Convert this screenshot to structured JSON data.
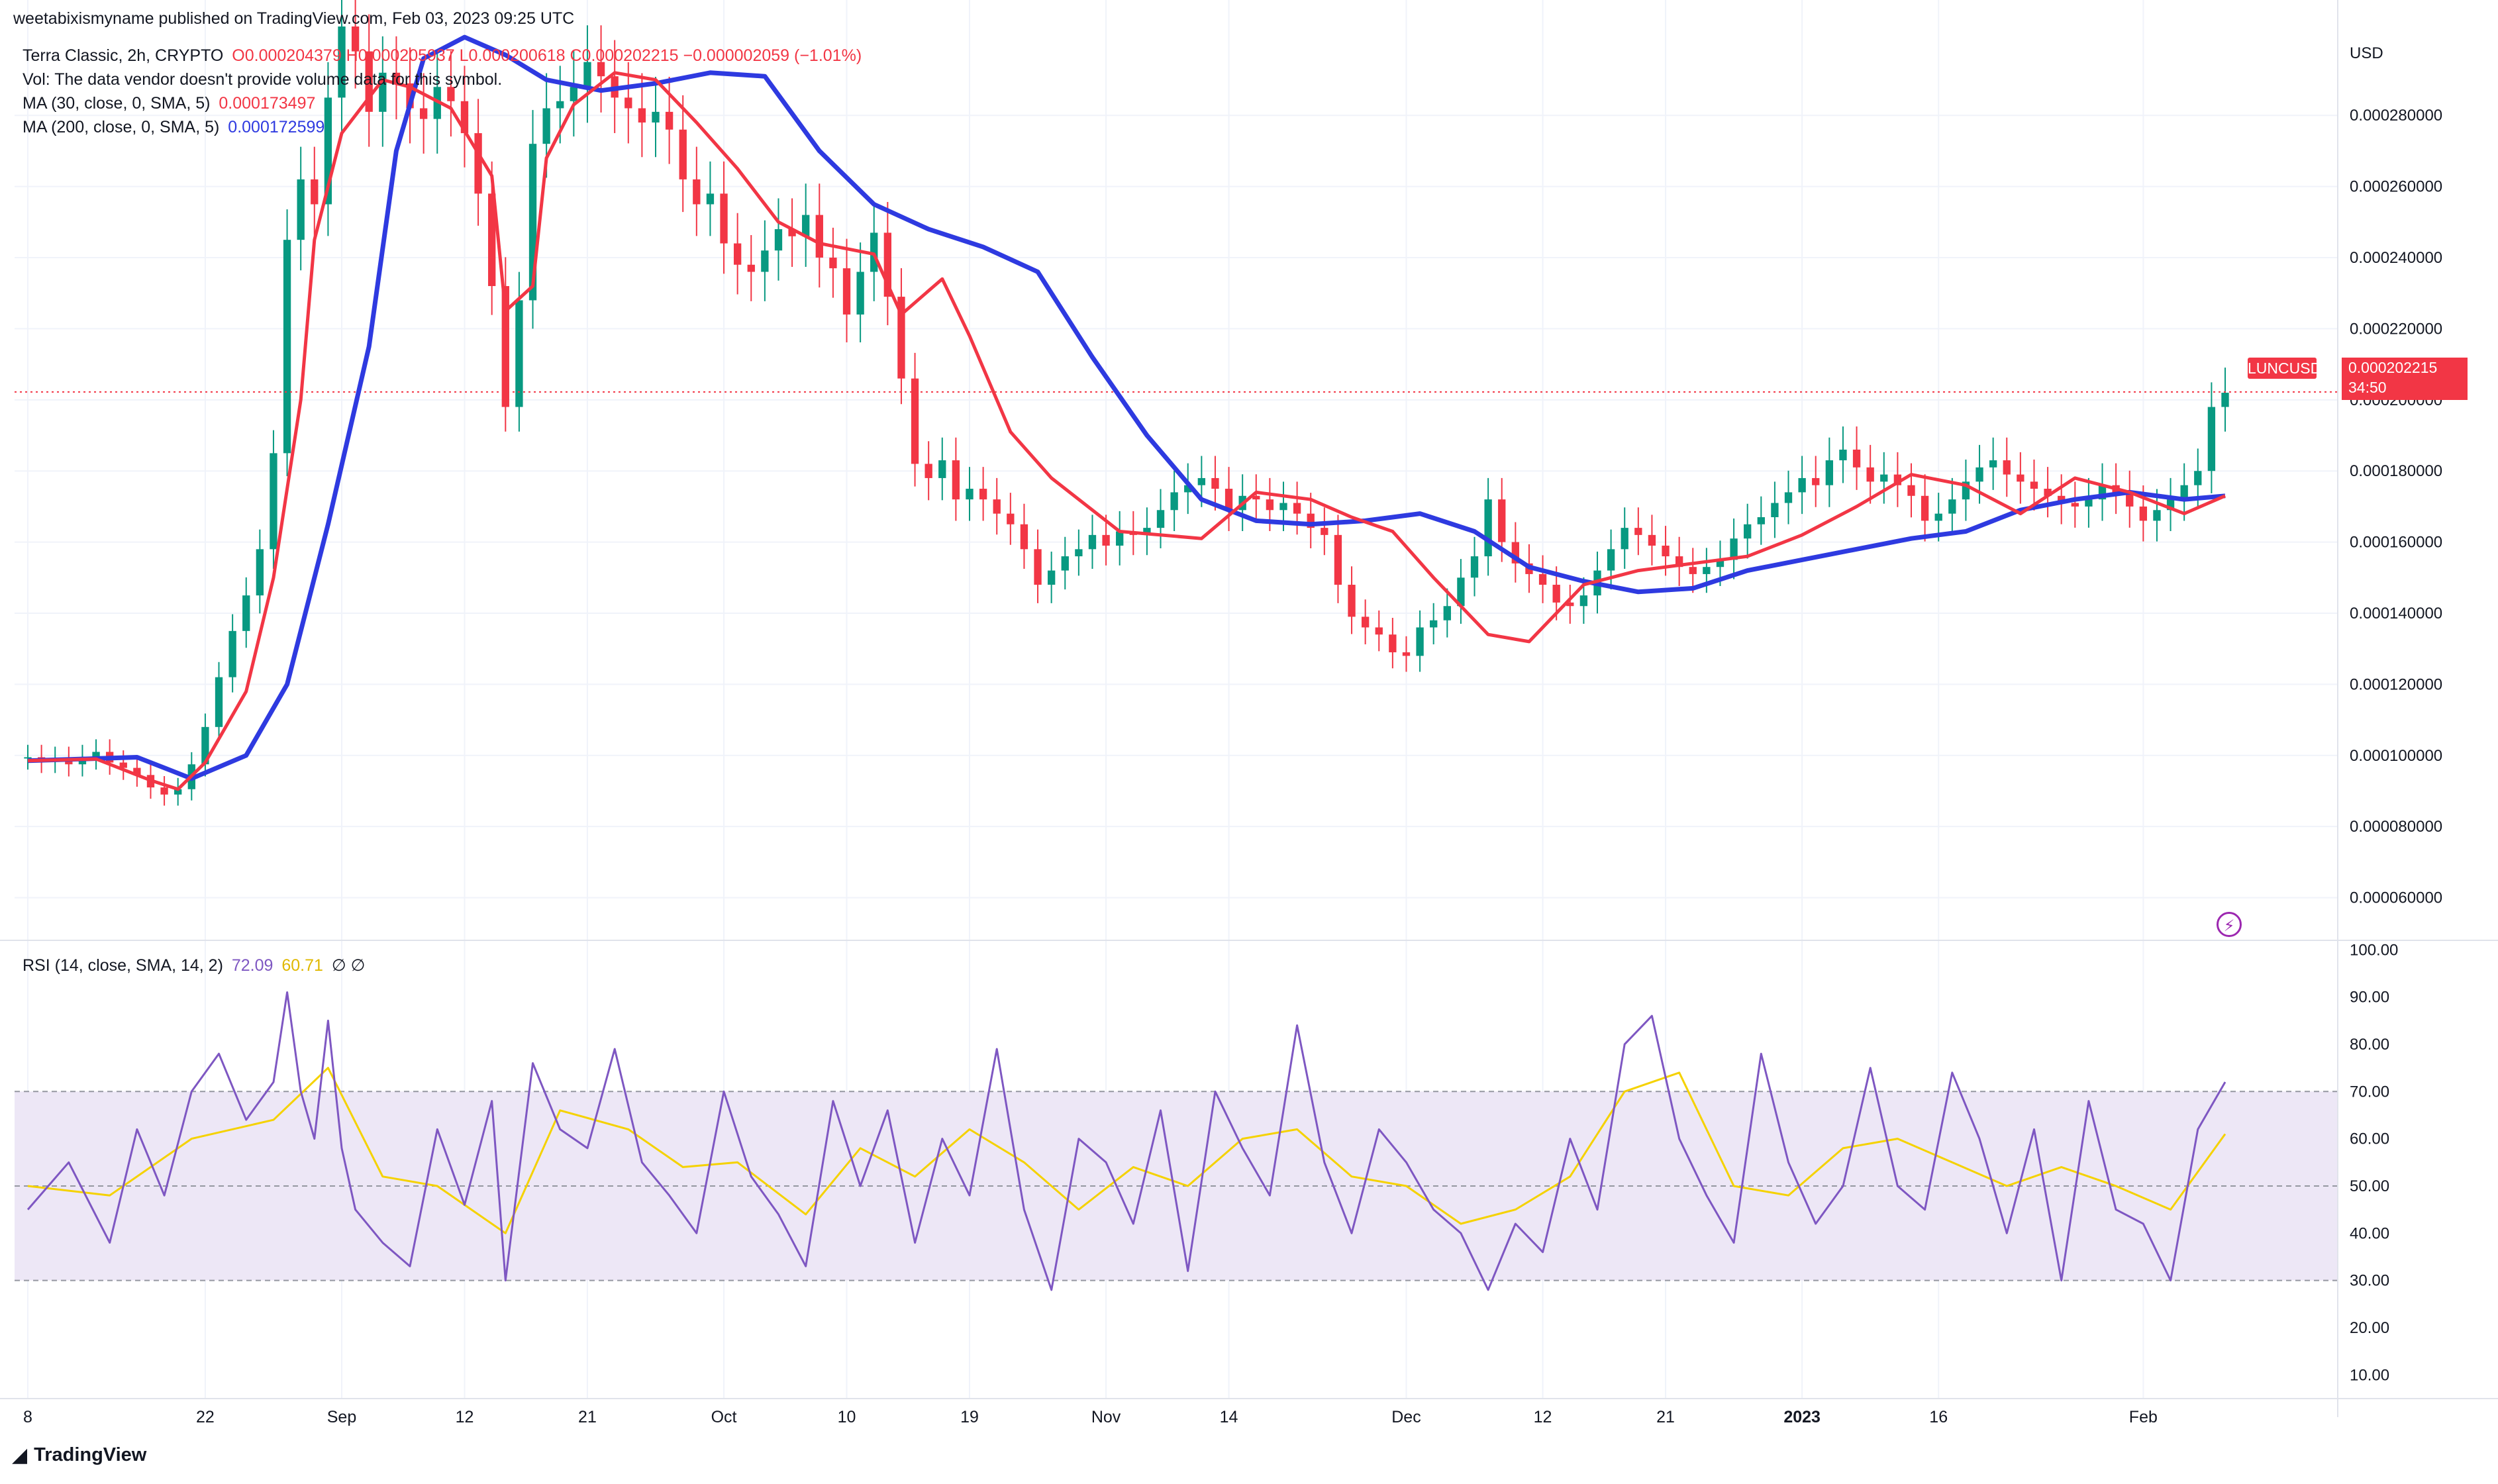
{
  "header": {
    "published": "weetabixismyname published on TradingView.com, Feb 03, 2023 09:25 UTC"
  },
  "legend": {
    "symbol": "Terra Classic, 2h, CRYPTO",
    "ohlc": "O0.000204379 H0.000205937 L0.000200618 C0.000202215 −0.000002059 (−1.01%)",
    "vol": "Vol: The data vendor doesn't provide volume data for this symbol.",
    "ma30_label": "MA (30, close, 0, SMA, 5)",
    "ma30_value": "0.000173497",
    "ma200_label": "MA (200, close, 0, SMA, 5)",
    "ma200_value": "0.000172599",
    "rsi_label": "RSI (14, close, SMA, 14, 2)",
    "rsi_value": "72.09",
    "rsi_ma_value": "60.71",
    "rsi_extra": "∅  ∅"
  },
  "price_tag": {
    "symbol": "LUNCUSD",
    "price": "0.000202215",
    "countdown": "34:50"
  },
  "colors": {
    "ma30": "#f23645",
    "ma200": "#2e3ae0",
    "candle_up": "#089981",
    "candle_down": "#f23645",
    "rsi": "#7e57c2",
    "rsi_ma": "#f5d200",
    "rsi_band": "#ede7f6"
  },
  "footer": {
    "brand": "TradingView"
  },
  "chart_data": [
    {
      "type": "candlestick",
      "title": "Terra Classic, 2h, CRYPTO",
      "currency": "USD",
      "y_ticks": [
        "0.000060000",
        "0.000080000",
        "0.000100000",
        "0.000120000",
        "0.000140000",
        "0.000160000",
        "0.000180000",
        "0.000200000",
        "0.000220000",
        "0.000240000",
        "0.000260000",
        "0.000280000"
      ],
      "ylim": [
        4.8e-05,
        0.000305
      ],
      "x_ticks": [
        "8",
        "22",
        "Sep",
        "12",
        "21",
        "Oct",
        "10",
        "19",
        "Nov",
        "14",
        "Dec",
        "12",
        "21",
        "2023",
        "16",
        "Feb"
      ],
      "series": [
        {
          "name": "Close (approx.)",
          "x": [
            0,
            1,
            2,
            3,
            4,
            5,
            6,
            7,
            8,
            9,
            10,
            11,
            12,
            13,
            14,
            15,
            16,
            17,
            18,
            19,
            20,
            21,
            22,
            23,
            24,
            25,
            26,
            27,
            28,
            29,
            30,
            31,
            32,
            33,
            34,
            35,
            36,
            37,
            38,
            39,
            40,
            41,
            42,
            43,
            44,
            45,
            46,
            47,
            48,
            49,
            50,
            51,
            52,
            53,
            54,
            55,
            56,
            57,
            58,
            59,
            60,
            61,
            62,
            63,
            64,
            65,
            66,
            67,
            68,
            69,
            70,
            71,
            72,
            73,
            74,
            75,
            76,
            77,
            78,
            79,
            80,
            81,
            82,
            83,
            84,
            85,
            86,
            87,
            88,
            89,
            90,
            91,
            92,
            93,
            94,
            95,
            96,
            97,
            98,
            99,
            100,
            101,
            102,
            103,
            104,
            105,
            106,
            107,
            108,
            109,
            110,
            111,
            112,
            113,
            114,
            115,
            116,
            117,
            118,
            119,
            120,
            121,
            122,
            123,
            124,
            125,
            126,
            127,
            128,
            129,
            130,
            131,
            132,
            133,
            134,
            135,
            136,
            137,
            138,
            139,
            140,
            141,
            142,
            143,
            144,
            145,
            146,
            147,
            148,
            149,
            150,
            151,
            152,
            153,
            154,
            155,
            156,
            157,
            158,
            159,
            160,
            161
          ],
          "values": [
            9.95e-05,
            9.85e-05,
            9.9e-05,
            9.75e-05,
            9.95e-05,
            0.000101,
            9.8e-05,
            9.65e-05,
            9.45e-05,
            9.1e-05,
            8.9e-05,
            9.05e-05,
            9.75e-05,
            0.000108,
            0.000122,
            0.000135,
            0.000145,
            0.000158,
            0.000185,
            0.000245,
            0.000262,
            0.000255,
            0.000285,
            0.000305,
            0.000298,
            0.000281,
            0.000292,
            0.000289,
            0.000282,
            0.000279,
            0.000288,
            0.000284,
            0.000275,
            0.000258,
            0.000232,
            0.000198,
            0.000228,
            0.000272,
            0.000282,
            0.000284,
            0.000288,
            0.000295,
            0.000291,
            0.000285,
            0.000282,
            0.000278,
            0.000281,
            0.000276,
            0.000262,
            0.000255,
            0.000258,
            0.000244,
            0.000238,
            0.000236,
            0.000242,
            0.000248,
            0.000246,
            0.000252,
            0.00024,
            0.000237,
            0.000224,
            0.000236,
            0.000247,
            0.000229,
            0.000206,
            0.000182,
            0.000178,
            0.000183,
            0.000172,
            0.000175,
            0.000172,
            0.000168,
            0.000165,
            0.000158,
            0.000148,
            0.000152,
            0.000156,
            0.000158,
            0.000162,
            0.000159,
            0.000163,
            0.000162,
            0.000164,
            0.000169,
            0.000174,
            0.000176,
            0.000178,
            0.000175,
            0.000169,
            0.000173,
            0.000172,
            0.000169,
            0.000171,
            0.000168,
            0.000164,
            0.000162,
            0.000148,
            0.000139,
            0.000136,
            0.000134,
            0.000129,
            0.000128,
            0.000136,
            0.000138,
            0.000142,
            0.00015,
            0.000156,
            0.000172,
            0.00016,
            0.000154,
            0.000151,
            0.000148,
            0.000143,
            0.000142,
            0.000145,
            0.000152,
            0.000158,
            0.000164,
            0.000162,
            0.000159,
            0.000156,
            0.000153,
            0.000151,
            0.000153,
            0.000155,
            0.000161,
            0.000165,
            0.000167,
            0.000171,
            0.000174,
            0.000178,
            0.000176,
            0.000183,
            0.000186,
            0.000181,
            0.000177,
            0.000179,
            0.000176,
            0.000173,
            0.000166,
            0.000168,
            0.000172,
            0.000177,
            0.000181,
            0.000183,
            0.000179,
            0.000177,
            0.000175,
            0.000173,
            0.000171,
            0.00017,
            0.000172,
            0.000176,
            0.000174,
            0.00017,
            0.000166,
            0.000169,
            0.000172,
            0.000176,
            0.00018,
            0.000198,
            0.000202
          ]
        },
        {
          "name": "MA (30, close, 0, SMA, 5)",
          "x": [
            0,
            5,
            9,
            11,
            13,
            16,
            18,
            20,
            21,
            23,
            26,
            28,
            31,
            34,
            35,
            37,
            38,
            40,
            43,
            46,
            49,
            52,
            55,
            58,
            62,
            64,
            67,
            69,
            72,
            75,
            80,
            86,
            90,
            94,
            97,
            100,
            103,
            107,
            110,
            114,
            118,
            122,
            126,
            130,
            134,
            138,
            142,
            146,
            150,
            154,
            158,
            161
          ],
          "values": [
            9.85e-05,
            9.9e-05,
            9.3e-05,
            9.05e-05,
            9.8e-05,
            0.000118,
            0.00015,
            0.0002,
            0.000245,
            0.000275,
            0.00029,
            0.000288,
            0.000282,
            0.000263,
            0.000225,
            0.000232,
            0.000268,
            0.000283,
            0.000292,
            0.00029,
            0.000278,
            0.000265,
            0.00025,
            0.000244,
            0.000241,
            0.000224,
            0.000234,
            0.000218,
            0.000191,
            0.000178,
            0.000163,
            0.000161,
            0.000174,
            0.000172,
            0.000167,
            0.000163,
            0.00015,
            0.000134,
            0.000132,
            0.000148,
            0.000152,
            0.000154,
            0.000156,
            0.000162,
            0.00017,
            0.000179,
            0.000176,
            0.000168,
            0.000178,
            0.000174,
            0.000168,
            0.000173
          ]
        },
        {
          "name": "MA (200, close, 0, SMA, 5)",
          "x": [
            0,
            8,
            12,
            16,
            19,
            22,
            25,
            27,
            29,
            32,
            35,
            38,
            42,
            46,
            50,
            54,
            58,
            62,
            66,
            70,
            74,
            78,
            82,
            86,
            90,
            94,
            98,
            102,
            106,
            110,
            114,
            118,
            122,
            126,
            130,
            134,
            138,
            142,
            146,
            150,
            154,
            158,
            161
          ],
          "values": [
            9.85e-05,
            9.95e-05,
            9.35e-05,
            0.0001,
            0.00012,
            0.000165,
            0.000215,
            0.00027,
            0.000296,
            0.000302,
            0.000297,
            0.00029,
            0.000287,
            0.000289,
            0.000292,
            0.000291,
            0.00027,
            0.000255,
            0.000248,
            0.000243,
            0.000236,
            0.000212,
            0.00019,
            0.000172,
            0.000166,
            0.000165,
            0.000166,
            0.000168,
            0.000163,
            0.000153,
            0.000149,
            0.000146,
            0.000147,
            0.000152,
            0.000155,
            0.000158,
            0.000161,
            0.000163,
            0.000169,
            0.000172,
            0.000174,
            0.000172,
            0.000173
          ]
        }
      ],
      "current_price": 0.000202215
    },
    {
      "type": "line",
      "title": "RSI (14, close, SMA, 14, 2)",
      "y_ticks": [
        "10.00",
        "20.00",
        "30.00",
        "40.00",
        "50.00",
        "60.00",
        "70.00",
        "80.00",
        "90.00",
        "100.00"
      ],
      "ylim": [
        5,
        102
      ],
      "bands": {
        "upper": 70,
        "middle": 50,
        "lower": 30
      },
      "x_ticks": [
        "8",
        "22",
        "Sep",
        "12",
        "21",
        "Oct",
        "10",
        "19",
        "Nov",
        "14",
        "Dec",
        "12",
        "21",
        "2023",
        "16",
        "Feb"
      ],
      "series": [
        {
          "name": "RSI",
          "x": [
            0,
            3,
            6,
            8,
            10,
            12,
            14,
            16,
            18,
            19,
            20,
            21,
            22,
            23,
            24,
            26,
            28,
            30,
            32,
            34,
            35,
            37,
            39,
            41,
            43,
            45,
            47,
            49,
            51,
            53,
            55,
            57,
            59,
            61,
            63,
            65,
            67,
            69,
            71,
            73,
            75,
            77,
            79,
            81,
            83,
            85,
            87,
            89,
            91,
            93,
            95,
            97,
            99,
            101,
            103,
            105,
            107,
            109,
            111,
            113,
            115,
            117,
            119,
            121,
            123,
            125,
            127,
            129,
            131,
            133,
            135,
            137,
            139,
            141,
            143,
            145,
            147,
            149,
            151,
            153,
            155,
            157,
            159,
            161
          ],
          "values": [
            45,
            55,
            38,
            62,
            48,
            70,
            78,
            64,
            72,
            91,
            70,
            60,
            85,
            58,
            45,
            38,
            33,
            62,
            46,
            68,
            30,
            76,
            62,
            58,
            79,
            55,
            48,
            40,
            70,
            52,
            44,
            33,
            68,
            50,
            66,
            38,
            60,
            48,
            79,
            45,
            28,
            60,
            55,
            42,
            66,
            32,
            70,
            58,
            48,
            84,
            55,
            40,
            62,
            55,
            45,
            40,
            28,
            42,
            36,
            60,
            45,
            80,
            86,
            60,
            48,
            38,
            78,
            55,
            42,
            50,
            75,
            50,
            45,
            74,
            60,
            40,
            62,
            30,
            68,
            45,
            42,
            30,
            62,
            72
          ]
        },
        {
          "name": "RSI MA",
          "x": [
            0,
            6,
            12,
            18,
            22,
            26,
            30,
            35,
            39,
            44,
            48,
            52,
            57,
            61,
            65,
            69,
            73,
            77,
            81,
            85,
            89,
            93,
            97,
            101,
            105,
            109,
            113,
            117,
            121,
            125,
            129,
            133,
            137,
            141,
            145,
            149,
            153,
            157,
            161
          ],
          "values": [
            50,
            48,
            60,
            64,
            75,
            52,
            50,
            40,
            66,
            62,
            54,
            55,
            44,
            58,
            52,
            62,
            55,
            45,
            54,
            50,
            60,
            62,
            52,
            50,
            42,
            45,
            52,
            70,
            74,
            50,
            48,
            58,
            60,
            55,
            50,
            54,
            50,
            45,
            61
          ]
        }
      ]
    }
  ]
}
